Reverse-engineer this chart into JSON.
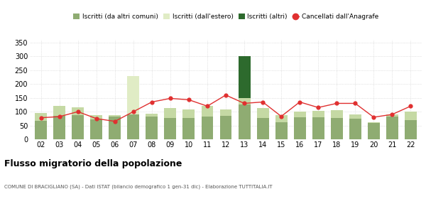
{
  "years": [
    "02",
    "03",
    "04",
    "05",
    "06",
    "07",
    "08",
    "09",
    "10",
    "11",
    "12",
    "13",
    "14",
    "15",
    "16",
    "17",
    "18",
    "19",
    "20",
    "21",
    "22"
  ],
  "iscritti_altri_comuni": [
    68,
    85,
    88,
    72,
    82,
    90,
    82,
    78,
    78,
    83,
    85,
    125,
    78,
    62,
    80,
    80,
    78,
    75,
    60,
    82,
    70
  ],
  "iscritti_estero": [
    0,
    0,
    0,
    0,
    0,
    140,
    0,
    0,
    0,
    0,
    0,
    0,
    0,
    0,
    0,
    0,
    0,
    0,
    0,
    0,
    0
  ],
  "iscritti_medio": [
    27,
    35,
    27,
    16,
    6,
    0,
    10,
    34,
    30,
    37,
    23,
    25,
    36,
    26,
    20,
    22,
    27,
    15,
    3,
    8,
    30
  ],
  "iscritti_altri": [
    0,
    0,
    0,
    0,
    0,
    0,
    0,
    0,
    0,
    0,
    0,
    150,
    0,
    0,
    0,
    0,
    0,
    0,
    0,
    0,
    0
  ],
  "cancellati": [
    78,
    82,
    100,
    75,
    65,
    100,
    135,
    148,
    143,
    120,
    160,
    130,
    135,
    83,
    135,
    115,
    130,
    130,
    80,
    90,
    120
  ],
  "color_altri_comuni": "#8fac72",
  "color_estero": "#e0ecc5",
  "color_medio": "#c5d9a4",
  "color_altri": "#2d6a2d",
  "color_cancellati": "#e03030",
  "color_bg": "#ffffff",
  "color_grid": "#cccccc",
  "ylim": [
    0,
    360
  ],
  "yticks": [
    0,
    50,
    100,
    150,
    200,
    250,
    300,
    350
  ],
  "title": "Flusso migratorio della popolazione",
  "subtitle": "COMUNE DI BRACIGLIANO (SA) - Dati ISTAT (bilancio demografico 1 gen-31 dic) - Elaborazione TUTTITALIA.IT",
  "legend_labels": [
    "Iscritti (da altri comuni)",
    "Iscritti (dall'estero)",
    "Iscritti (altri)",
    "Cancellati dall'Anagrafe"
  ]
}
